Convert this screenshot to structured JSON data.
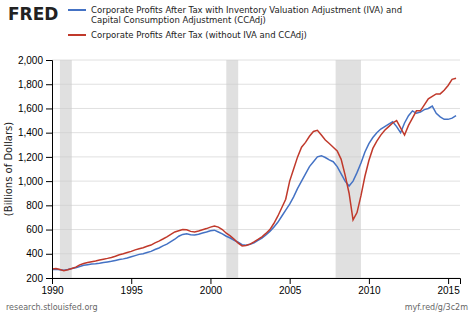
{
  "chart_data": {
    "type": "line",
    "title": "FRED",
    "y_label": "(Billions of Dollars)",
    "annotations": [
      "research.stlouisfed.org",
      "myf.red/g/3c2m"
    ],
    "x": [
      1990,
      1990.25,
      1990.5,
      1990.75,
      1991,
      1991.25,
      1991.5,
      1991.75,
      1992,
      1992.25,
      1992.5,
      1992.75,
      1993,
      1993.25,
      1993.5,
      1993.75,
      1994,
      1994.25,
      1994.5,
      1994.75,
      1995,
      1995.25,
      1995.5,
      1995.75,
      1996,
      1996.25,
      1996.5,
      1996.75,
      1997,
      1997.25,
      1997.5,
      1997.75,
      1998,
      1998.25,
      1998.5,
      1998.75,
      1999,
      1999.25,
      1999.5,
      1999.75,
      2000,
      2000.25,
      2000.5,
      2000.75,
      2001,
      2001.25,
      2001.5,
      2001.75,
      2002,
      2002.25,
      2002.5,
      2002.75,
      2003,
      2003.25,
      2003.5,
      2003.75,
      2004,
      2004.25,
      2004.5,
      2004.75,
      2005,
      2005.25,
      2005.5,
      2005.75,
      2006,
      2006.25,
      2006.5,
      2006.75,
      2007,
      2007.25,
      2007.5,
      2007.75,
      2008,
      2008.25,
      2008.5,
      2008.75,
      2009,
      2009.25,
      2009.5,
      2009.75,
      2010,
      2010.25,
      2010.5,
      2010.75,
      2011,
      2011.25,
      2011.5,
      2011.75,
      2012,
      2012.25,
      2012.5,
      2012.75,
      2013,
      2013.25,
      2013.5,
      2013.75,
      2014,
      2014.25,
      2014.5,
      2014.75,
      2015,
      2015.25,
      2015.5
    ],
    "series": [
      {
        "name": "Corporate Profits After Tax with Inventory Valuation Adjustment (IVA) and\nCapital Consumption Adjustment (CCAdj)",
        "color": "#4472c4",
        "values": [
          270,
          272,
          268,
          265,
          270,
          278,
          285,
          295,
          305,
          310,
          315,
          318,
          322,
          328,
          333,
          338,
          345,
          352,
          358,
          365,
          375,
          385,
          395,
          400,
          410,
          420,
          435,
          448,
          465,
          480,
          500,
          520,
          545,
          560,
          565,
          558,
          555,
          562,
          572,
          580,
          590,
          595,
          580,
          565,
          545,
          530,
          510,
          495,
          475,
          470,
          478,
          490,
          510,
          530,
          555,
          585,
          620,
          660,
          710,
          760,
          810,
          870,
          940,
          1000,
          1060,
          1120,
          1160,
          1200,
          1210,
          1195,
          1175,
          1160,
          1120,
          1060,
          1000,
          960,
          1000,
          1070,
          1150,
          1240,
          1310,
          1360,
          1400,
          1430,
          1450,
          1470,
          1490,
          1450,
          1400,
          1480,
          1540,
          1580,
          1560,
          1570,
          1590,
          1600,
          1620,
          1560,
          1530,
          1510,
          1510,
          1520,
          1540
        ]
      },
      {
        "name": "Corporate Profits After Tax (without IVA and CCAdj)",
        "color": "#c0392b",
        "values": [
          275,
          278,
          270,
          260,
          268,
          278,
          290,
          308,
          320,
          328,
          335,
          340,
          348,
          355,
          362,
          370,
          380,
          392,
          400,
          410,
          420,
          432,
          442,
          450,
          462,
          472,
          490,
          505,
          522,
          540,
          560,
          580,
          590,
          600,
          598,
          585,
          580,
          588,
          598,
          608,
          620,
          630,
          620,
          600,
          570,
          548,
          520,
          488,
          465,
          468,
          480,
          498,
          518,
          540,
          568,
          600,
          650,
          710,
          780,
          850,
          1000,
          1100,
          1200,
          1280,
          1320,
          1370,
          1410,
          1420,
          1380,
          1340,
          1310,
          1280,
          1250,
          1180,
          1050,
          900,
          680,
          740,
          880,
          1040,
          1170,
          1270,
          1330,
          1380,
          1420,
          1450,
          1480,
          1500,
          1440,
          1380,
          1460,
          1520,
          1580,
          1580,
          1630,
          1680,
          1700,
          1720,
          1720,
          1750,
          1790,
          1840,
          1850
        ]
      }
    ],
    "recession_bands": [
      [
        1990.5,
        1991.25
      ],
      [
        2001.0,
        2001.75
      ],
      [
        2007.9,
        2009.5
      ]
    ],
    "xlim": [
      1990,
      2015.75
    ],
    "xticks": [
      1990,
      1995,
      2000,
      2005,
      2010,
      2015
    ],
    "ylim": [
      200,
      2000
    ],
    "yticks": [
      200,
      400,
      600,
      800,
      {
        "value": 1000,
        "label": "1,000"
      },
      {
        "value": 1200,
        "label": "1,200"
      },
      {
        "value": 1400,
        "label": "1,400"
      },
      {
        "value": 1600,
        "label": "1,600"
      },
      {
        "value": 1800,
        "label": "1,800"
      },
      {
        "value": 2000,
        "label": "2,000"
      }
    ],
    "grid": true
  }
}
